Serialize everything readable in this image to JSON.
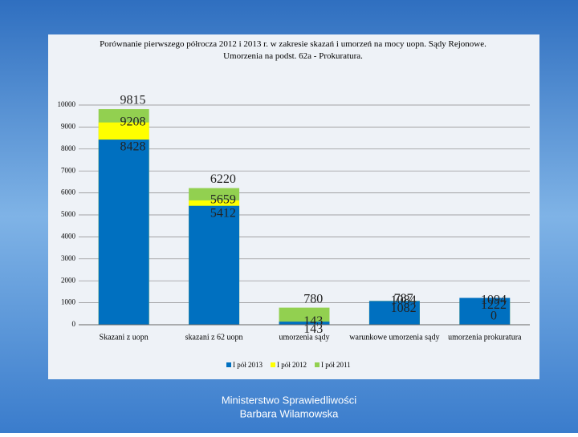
{
  "chart_data": {
    "type": "bar",
    "title": "Porównanie pierwszego półrocza 2012 i 2013 r. w zakresie skazań i umorzeń na mocy uopn. Sądy Rejonowe. Umorzenia na podst. 62a - Prokuratura.",
    "categories": [
      "Skazani z uopn",
      "skazani z 62 uopn",
      "umorzenia sądy",
      "warunkowe umorzenia sądy",
      "umorzenia prokuratura"
    ],
    "series": [
      {
        "name": "I pół 2011",
        "color": "#92d050",
        "values": [
          9815,
          6220,
          780,
          787,
          0
        ]
      },
      {
        "name": "I pół 2012",
        "color": "#ffff00",
        "values": [
          9208,
          5659,
          143,
          1084,
          1094
        ]
      },
      {
        "name": "I pół 2013",
        "color": "#0070c0",
        "values": [
          8428,
          5412,
          143,
          1082,
          1222
        ]
      }
    ],
    "ylim": [
      0,
      10000
    ],
    "yticks": [
      0,
      1000,
      2000,
      3000,
      4000,
      5000,
      6000,
      7000,
      8000,
      9000,
      10000
    ],
    "grid": true,
    "legend": "bottom"
  },
  "footer": {
    "line1": "Ministerstwo Sprawiedliwości",
    "line2": "Barbara Wilamowska"
  }
}
